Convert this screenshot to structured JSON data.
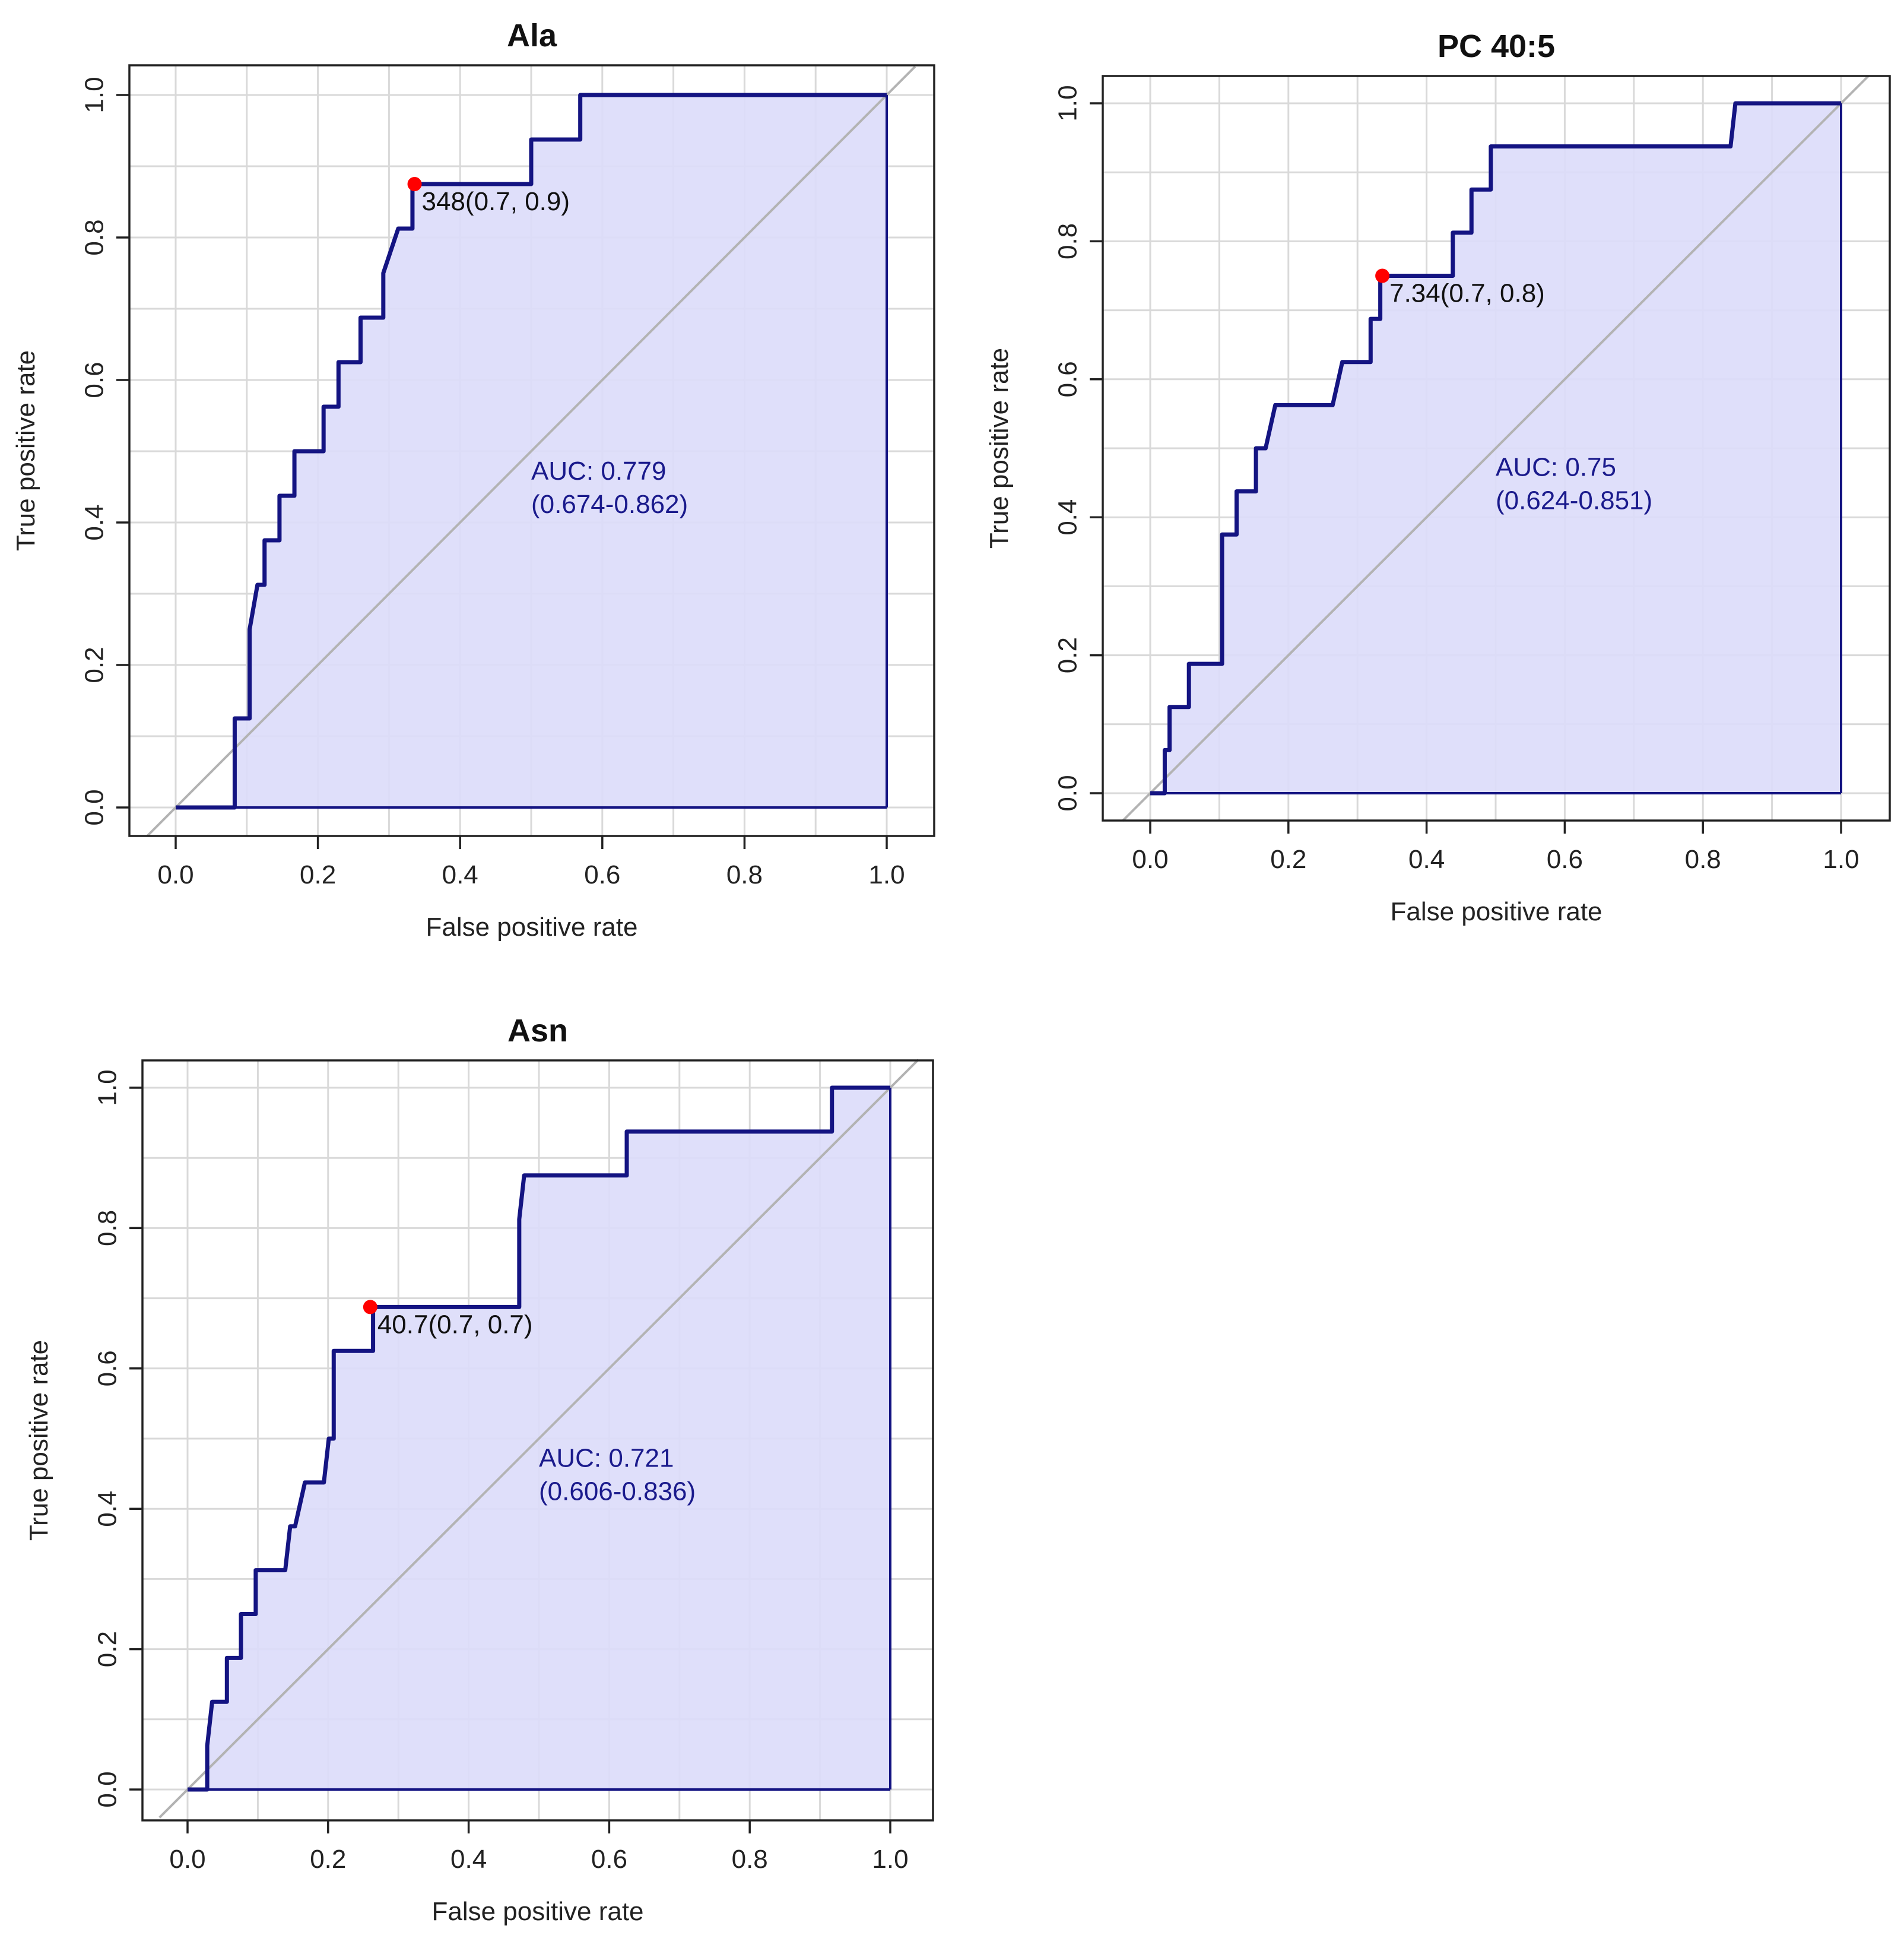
{
  "colors": {
    "curve": "#141482",
    "fill": "#dcdcfa",
    "grid": "#d9d9d9",
    "diagonal": "#b3b3b3",
    "point": "#ff0000",
    "auc_text": "#1a1a8c",
    "frame": "#222222"
  },
  "chart_data": [
    {
      "type": "line",
      "title": "Ala",
      "xlabel": "False positive rate",
      "ylabel": "True positive rate",
      "xlim": [
        0,
        1
      ],
      "ylim": [
        0,
        1
      ],
      "ticks": [
        "0.0",
        "0.2",
        "0.4",
        "0.6",
        "0.8",
        "1.0"
      ],
      "grid": true,
      "series": [
        {
          "name": "ROC",
          "x": [
            0,
            0.083,
            0.083,
            0.104,
            0.104,
            0.115,
            0.125,
            0.125,
            0.146,
            0.146,
            0.167,
            0.167,
            0.208,
            0.208,
            0.229,
            0.229,
            0.26,
            0.26,
            0.292,
            0.292,
            0.313,
            0.333,
            0.333,
            0.354,
            0.396,
            0.438,
            0.5,
            0.5,
            0.569,
            0.569,
            1.0
          ],
          "y": [
            0,
            0,
            0.125,
            0.125,
            0.25,
            0.3125,
            0.3125,
            0.375,
            0.375,
            0.4375,
            0.4375,
            0.5,
            0.5,
            0.5625,
            0.5625,
            0.625,
            0.625,
            0.6875,
            0.6875,
            0.75,
            0.8125,
            0.8125,
            0.875,
            0.875,
            0.875,
            0.875,
            0.875,
            0.9375,
            0.9375,
            1.0,
            1.0
          ]
        }
      ],
      "cutoff": {
        "label": "348(0.7, 0.9)",
        "x": 0.336,
        "y": 0.875
      },
      "auc": {
        "line1": "AUC: 0.779",
        "line2": "(0.674-0.862)",
        "x": 0.5,
        "y": 0.46
      }
    },
    {
      "type": "line",
      "title": "PC 40:5",
      "xlabel": "False positive rate",
      "ylabel": "True positive rate",
      "xlim": [
        0,
        1
      ],
      "ylim": [
        0,
        1
      ],
      "ticks": [
        "0.0",
        "0.2",
        "0.4",
        "0.6",
        "0.8",
        "1.0"
      ],
      "grid": true,
      "series": [
        {
          "name": "ROC",
          "x": [
            0,
            0.021,
            0.021,
            0.028,
            0.028,
            0.056,
            0.056,
            0.104,
            0.104,
            0.125,
            0.125,
            0.153,
            0.153,
            0.167,
            0.181,
            0.264,
            0.264,
            0.278,
            0.319,
            0.319,
            0.333,
            0.333,
            0.354,
            0.438,
            0.438,
            0.465,
            0.465,
            0.493,
            0.493,
            0.84,
            0.847,
            1.0
          ],
          "y": [
            0,
            0,
            0.0625,
            0.0625,
            0.125,
            0.125,
            0.1875,
            0.1875,
            0.375,
            0.375,
            0.4375,
            0.4375,
            0.5,
            0.5,
            0.5625,
            0.5625,
            0.5625,
            0.625,
            0.625,
            0.6875,
            0.6875,
            0.75,
            0.75,
            0.75,
            0.8125,
            0.8125,
            0.875,
            0.875,
            0.9375,
            0.9375,
            1.0,
            1.0
          ]
        }
      ],
      "cutoff": {
        "label": "7.34(0.7, 0.8)",
        "x": 0.336,
        "y": 0.75
      },
      "auc": {
        "line1": "AUC: 0.75",
        "line2": "(0.624-0.851)",
        "x": 0.5,
        "y": 0.46
      }
    },
    {
      "type": "line",
      "title": "Asn",
      "xlabel": "False positive rate",
      "ylabel": "True positive rate",
      "xlim": [
        0,
        1
      ],
      "ylim": [
        0,
        1
      ],
      "ticks": [
        "0.0",
        "0.2",
        "0.4",
        "0.6",
        "0.8",
        "1.0"
      ],
      "grid": true,
      "series": [
        {
          "name": "ROC",
          "x": [
            0,
            0.028,
            0.028,
            0.035,
            0.035,
            0.056,
            0.056,
            0.076,
            0.076,
            0.097,
            0.097,
            0.111,
            0.111,
            0.139,
            0.146,
            0.153,
            0.167,
            0.174,
            0.194,
            0.201,
            0.208,
            0.208,
            0.264,
            0.264,
            0.292,
            0.472,
            0.472,
            0.479,
            0.5,
            0.625,
            0.625,
            0.639,
            0.917,
            0.917,
            1.0
          ],
          "y": [
            0,
            0,
            0.0625,
            0.125,
            0.125,
            0.125,
            0.1875,
            0.1875,
            0.25,
            0.25,
            0.3125,
            0.3125,
            0.3125,
            0.3125,
            0.375,
            0.375,
            0.4375,
            0.4375,
            0.4375,
            0.5,
            0.5,
            0.625,
            0.625,
            0.6875,
            0.6875,
            0.6875,
            0.8125,
            0.875,
            0.875,
            0.875,
            0.9375,
            0.9375,
            0.9375,
            1.0,
            1.0
          ]
        }
      ],
      "cutoff": {
        "label": "40.7(0.7, 0.7)",
        "x": 0.26,
        "y": 0.6875
      },
      "auc": {
        "line1": "AUC: 0.721",
        "line2": "(0.606-0.836)",
        "x": 0.5,
        "y": 0.46
      }
    }
  ]
}
